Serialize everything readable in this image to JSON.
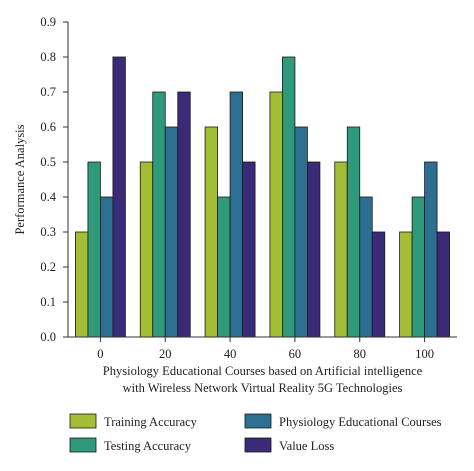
{
  "chart_data": {
    "type": "bar",
    "categories": [
      "0",
      "20",
      "40",
      "60",
      "80",
      "100"
    ],
    "series": [
      {
        "name": "Training Accuracy",
        "values": [
          0.3,
          0.5,
          0.6,
          0.7,
          0.5,
          0.3
        ]
      },
      {
        "name": "Testing Accuracy",
        "values": [
          0.5,
          0.7,
          0.4,
          0.8,
          0.6,
          0.4
        ]
      },
      {
        "name": "Physiology Educational Courses",
        "values": [
          0.4,
          0.6,
          0.7,
          0.6,
          0.4,
          0.5
        ]
      },
      {
        "name": "Value Loss",
        "values": [
          0.8,
          0.7,
          0.5,
          0.5,
          0.3,
          0.3
        ]
      }
    ],
    "colors": [
      "#a3bd34",
      "#2e9a79",
      "#2c6f90",
      "#3b2a78"
    ],
    "ylabel": "Performance Analysis",
    "xlabel_lines": [
      "Physiology Educational Courses based on Artificial intelligence",
      "with Wireless Network Virtual Reality 5G Technologies"
    ],
    "ylim": [
      0,
      0.9
    ],
    "yticks": [
      "0.0",
      "0.1",
      "0.2",
      "0.3",
      "0.4",
      "0.5",
      "0.6",
      "0.7",
      "0.8",
      "0.9"
    ],
    "grid": false,
    "legend_position": "bottom"
  }
}
